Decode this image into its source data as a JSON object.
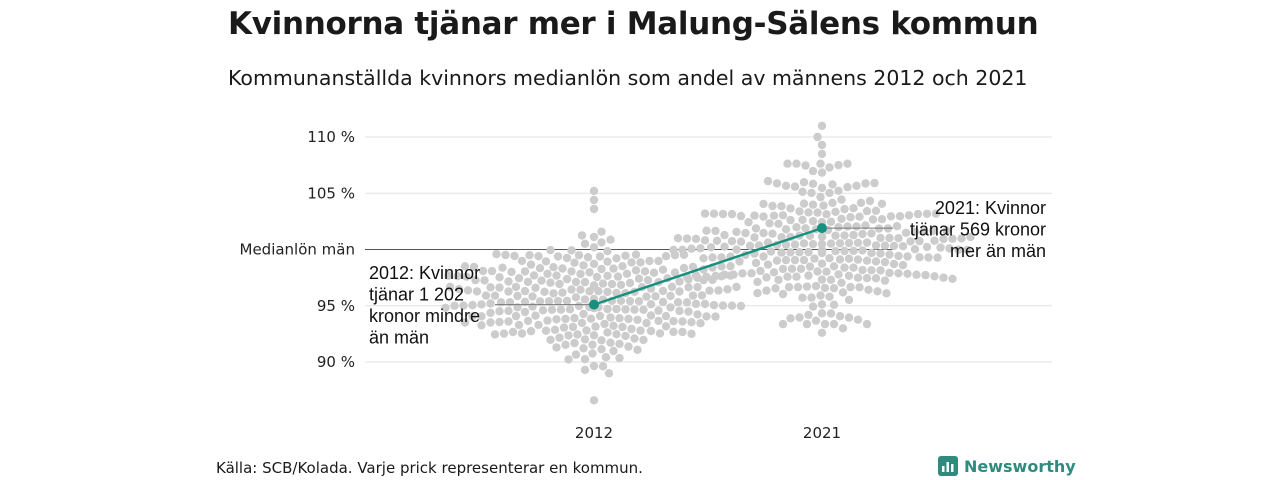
{
  "title": "Kvinnorna tjänar mer i Malung-Sälens kommun",
  "subtitle": "Kommunanställda kvinnors medianlön som andel av männens 2012 och 2021",
  "source": "Källa: SCB/Kolada. Varje prick representerar en kommun.",
  "brand": {
    "name": "Newsworthy",
    "color": "#2e8b7d",
    "icon": "newsworthy-logo-icon"
  },
  "colors": {
    "dots": "#cccccc",
    "highlight": "#16917f",
    "grid": "#e2e2e2",
    "reference": "#555555"
  },
  "chart_data": {
    "type": "scatter",
    "style": "beeswarm",
    "categories": [
      "2012",
      "2021"
    ],
    "y_tick_labels": [
      "90 %",
      "95 %",
      "105 %",
      "110 %"
    ],
    "y_ticks": [
      90,
      95,
      105,
      110
    ],
    "ylim": [
      85.5,
      111.5
    ],
    "grid": true,
    "reference_line": {
      "label": "Medianlön män",
      "value": 100
    },
    "highlight": {
      "name": "Malung-Sälen",
      "values": [
        95.1,
        101.9
      ]
    },
    "annotations": [
      {
        "category": "2012",
        "text": [
          "2012: Kvinnor",
          "tjänar 1 202",
          "kronor mindre",
          "än män"
        ]
      },
      {
        "category": "2021",
        "text": [
          "2021: Kvinnor",
          "tjänar 569 kronor",
          "mer än män"
        ]
      }
    ],
    "distribution": [
      {
        "category": "2012",
        "mean": 95.6,
        "sd": 2.6,
        "count": 290,
        "outliers": [
          86.6,
          89.0,
          89.3,
          105.2,
          104.4,
          103.6
        ]
      },
      {
        "category": "2021",
        "mean": 100.5,
        "sd": 3.1,
        "count": 290,
        "outliers": [
          111.0,
          110.0,
          109.3,
          108.5,
          93.0,
          92.6
        ]
      }
    ]
  }
}
